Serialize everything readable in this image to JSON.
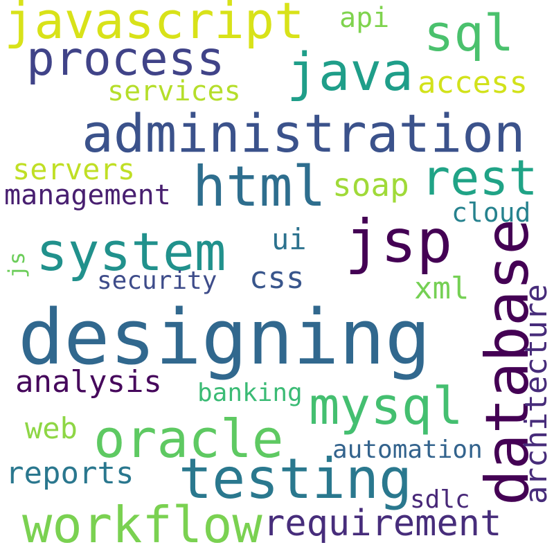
{
  "words": {
    "designing": {
      "text": "designing",
      "color": "#31688e"
    },
    "administration": {
      "text": "administration",
      "color": "#3b528b"
    },
    "system": {
      "text": "system",
      "color": "#21918c"
    },
    "jsp": {
      "text": "jsp",
      "color": "#440154"
    },
    "database": {
      "text": "database",
      "color": "#440154"
    },
    "java": {
      "text": "java",
      "color": "#1f9e89"
    },
    "javascript": {
      "text": "javascript",
      "color": "#d8e219"
    },
    "process": {
      "text": "process",
      "color": "#404388"
    },
    "sql": {
      "text": "sql",
      "color": "#4ac16d"
    },
    "html": {
      "text": "html",
      "color": "#2e6e8e"
    },
    "rest": {
      "text": "rest",
      "color": "#20a386"
    },
    "oracle": {
      "text": "oracle",
      "color": "#5ec962"
    },
    "testing": {
      "text": "testing",
      "color": "#2a788e"
    },
    "mysql": {
      "text": "mysql",
      "color": "#44bf70"
    },
    "workflow": {
      "text": "workflow",
      "color": "#7ad151"
    },
    "requirement": {
      "text": "requirement",
      "color": "#472d7b"
    },
    "architecture": {
      "text": "architecture",
      "color": "#472c7a"
    },
    "management": {
      "text": "management",
      "color": "#481f70"
    },
    "analysis": {
      "text": "analysis",
      "color": "#46085c"
    },
    "servers": {
      "text": "servers",
      "color": "#c0df25"
    },
    "services": {
      "text": "services",
      "color": "#b5de2b"
    },
    "access": {
      "text": "access",
      "color": "#d2e21b"
    },
    "api": {
      "text": "api",
      "color": "#7fd34e"
    },
    "soap": {
      "text": "soap",
      "color": "#a0da39"
    },
    "cloud": {
      "text": "cloud",
      "color": "#26828e"
    },
    "ui": {
      "text": "ui",
      "color": "#2c728e"
    },
    "css": {
      "text": "css",
      "color": "#39568c"
    },
    "security": {
      "text": "security",
      "color": "#3e4c8a"
    },
    "xml": {
      "text": "xml",
      "color": "#75d054"
    },
    "js": {
      "text": "js",
      "color": "#6ccd5a"
    },
    "banking": {
      "text": "banking",
      "color": "#3bbb75"
    },
    "web": {
      "text": "web",
      "color": "#8ed645"
    },
    "automation": {
      "text": "automation",
      "color": "#33638d"
    },
    "reports": {
      "text": "reports",
      "color": "#2a778e"
    },
    "sdlc": {
      "text": "sdlc",
      "color": "#482878"
    }
  }
}
